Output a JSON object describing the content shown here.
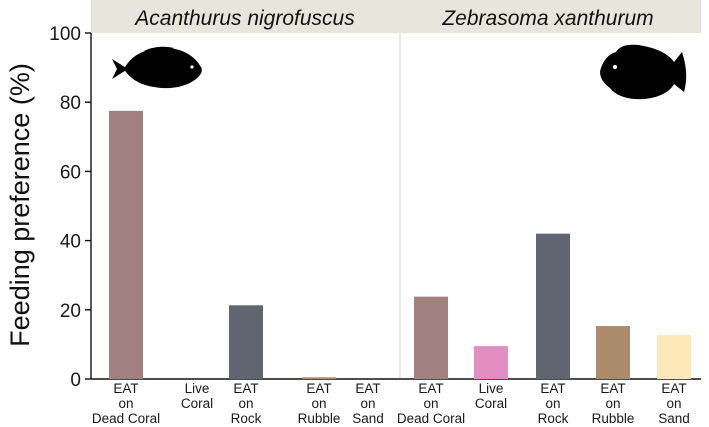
{
  "chart_data": {
    "type": "bar",
    "ylabel": "Feeding preference (%)",
    "ylim": [
      0,
      100
    ],
    "yticks": [
      0,
      20,
      40,
      60,
      80,
      100
    ],
    "grid": false,
    "panels": [
      {
        "title": "Acanthurus nigrofuscus",
        "categories": [
          [
            "EAT",
            "on",
            "Dead Coral"
          ],
          [
            "Live",
            "Coral"
          ],
          [
            "EAT",
            "on",
            "Rock"
          ],
          [
            "EAT",
            "on",
            "Rubble"
          ],
          [
            "EAT",
            "on",
            "Sand"
          ]
        ],
        "values": [
          77.5,
          0,
          21.3,
          0.5,
          0
        ]
      },
      {
        "title": "Zebrasoma xanthurum",
        "categories": [
          [
            "EAT",
            "on",
            "Dead Coral"
          ],
          [
            "Live",
            "Coral"
          ],
          [
            "EAT",
            "on",
            "Rock"
          ],
          [
            "EAT",
            "on",
            "Rubble"
          ],
          [
            "EAT",
            "on",
            "Sand"
          ]
        ],
        "values": [
          23.8,
          9.5,
          42,
          15.3,
          12.7
        ]
      }
    ],
    "bar_colors": [
      "#a2807f",
      "#e28ec3",
      "#606570",
      "#aa8c6c",
      "#fde8b8"
    ],
    "header_color": "#e7e6dc",
    "fish_icons": [
      "fish-silhouette-icon",
      "fish-silhouette-icon"
    ]
  }
}
